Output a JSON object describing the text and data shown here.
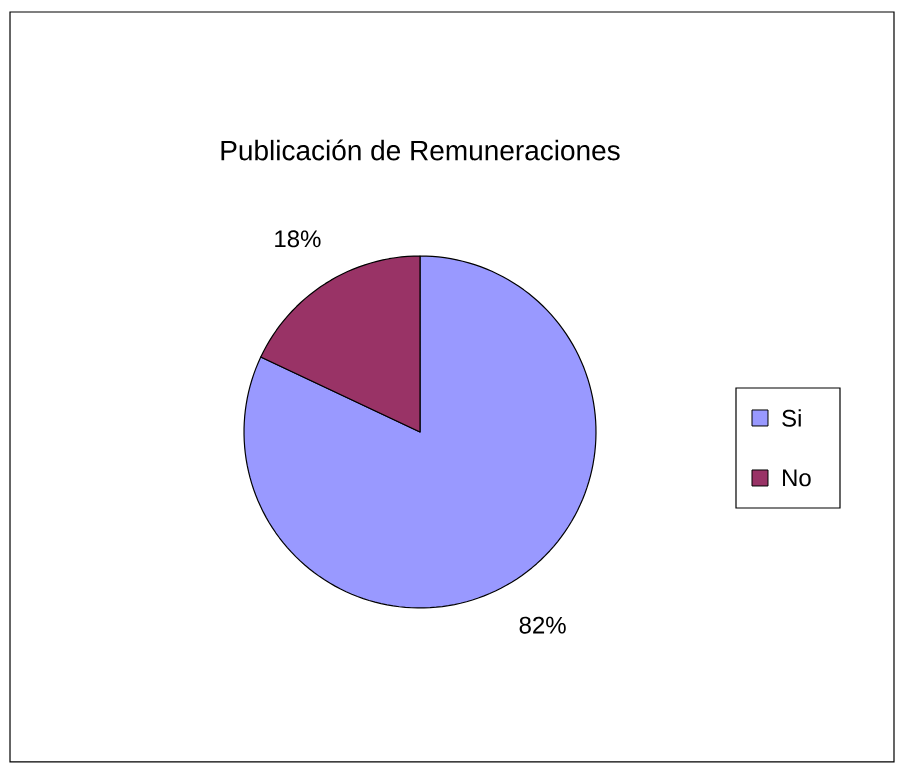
{
  "chart_data": {
    "type": "pie",
    "title": "Publicación de Remuneraciones",
    "categories": [
      "Si",
      "No"
    ],
    "values": [
      82,
      18
    ],
    "colors": [
      "#9999ff",
      "#993366"
    ],
    "value_labels": [
      "82%",
      "18%"
    ],
    "legend": "right"
  }
}
